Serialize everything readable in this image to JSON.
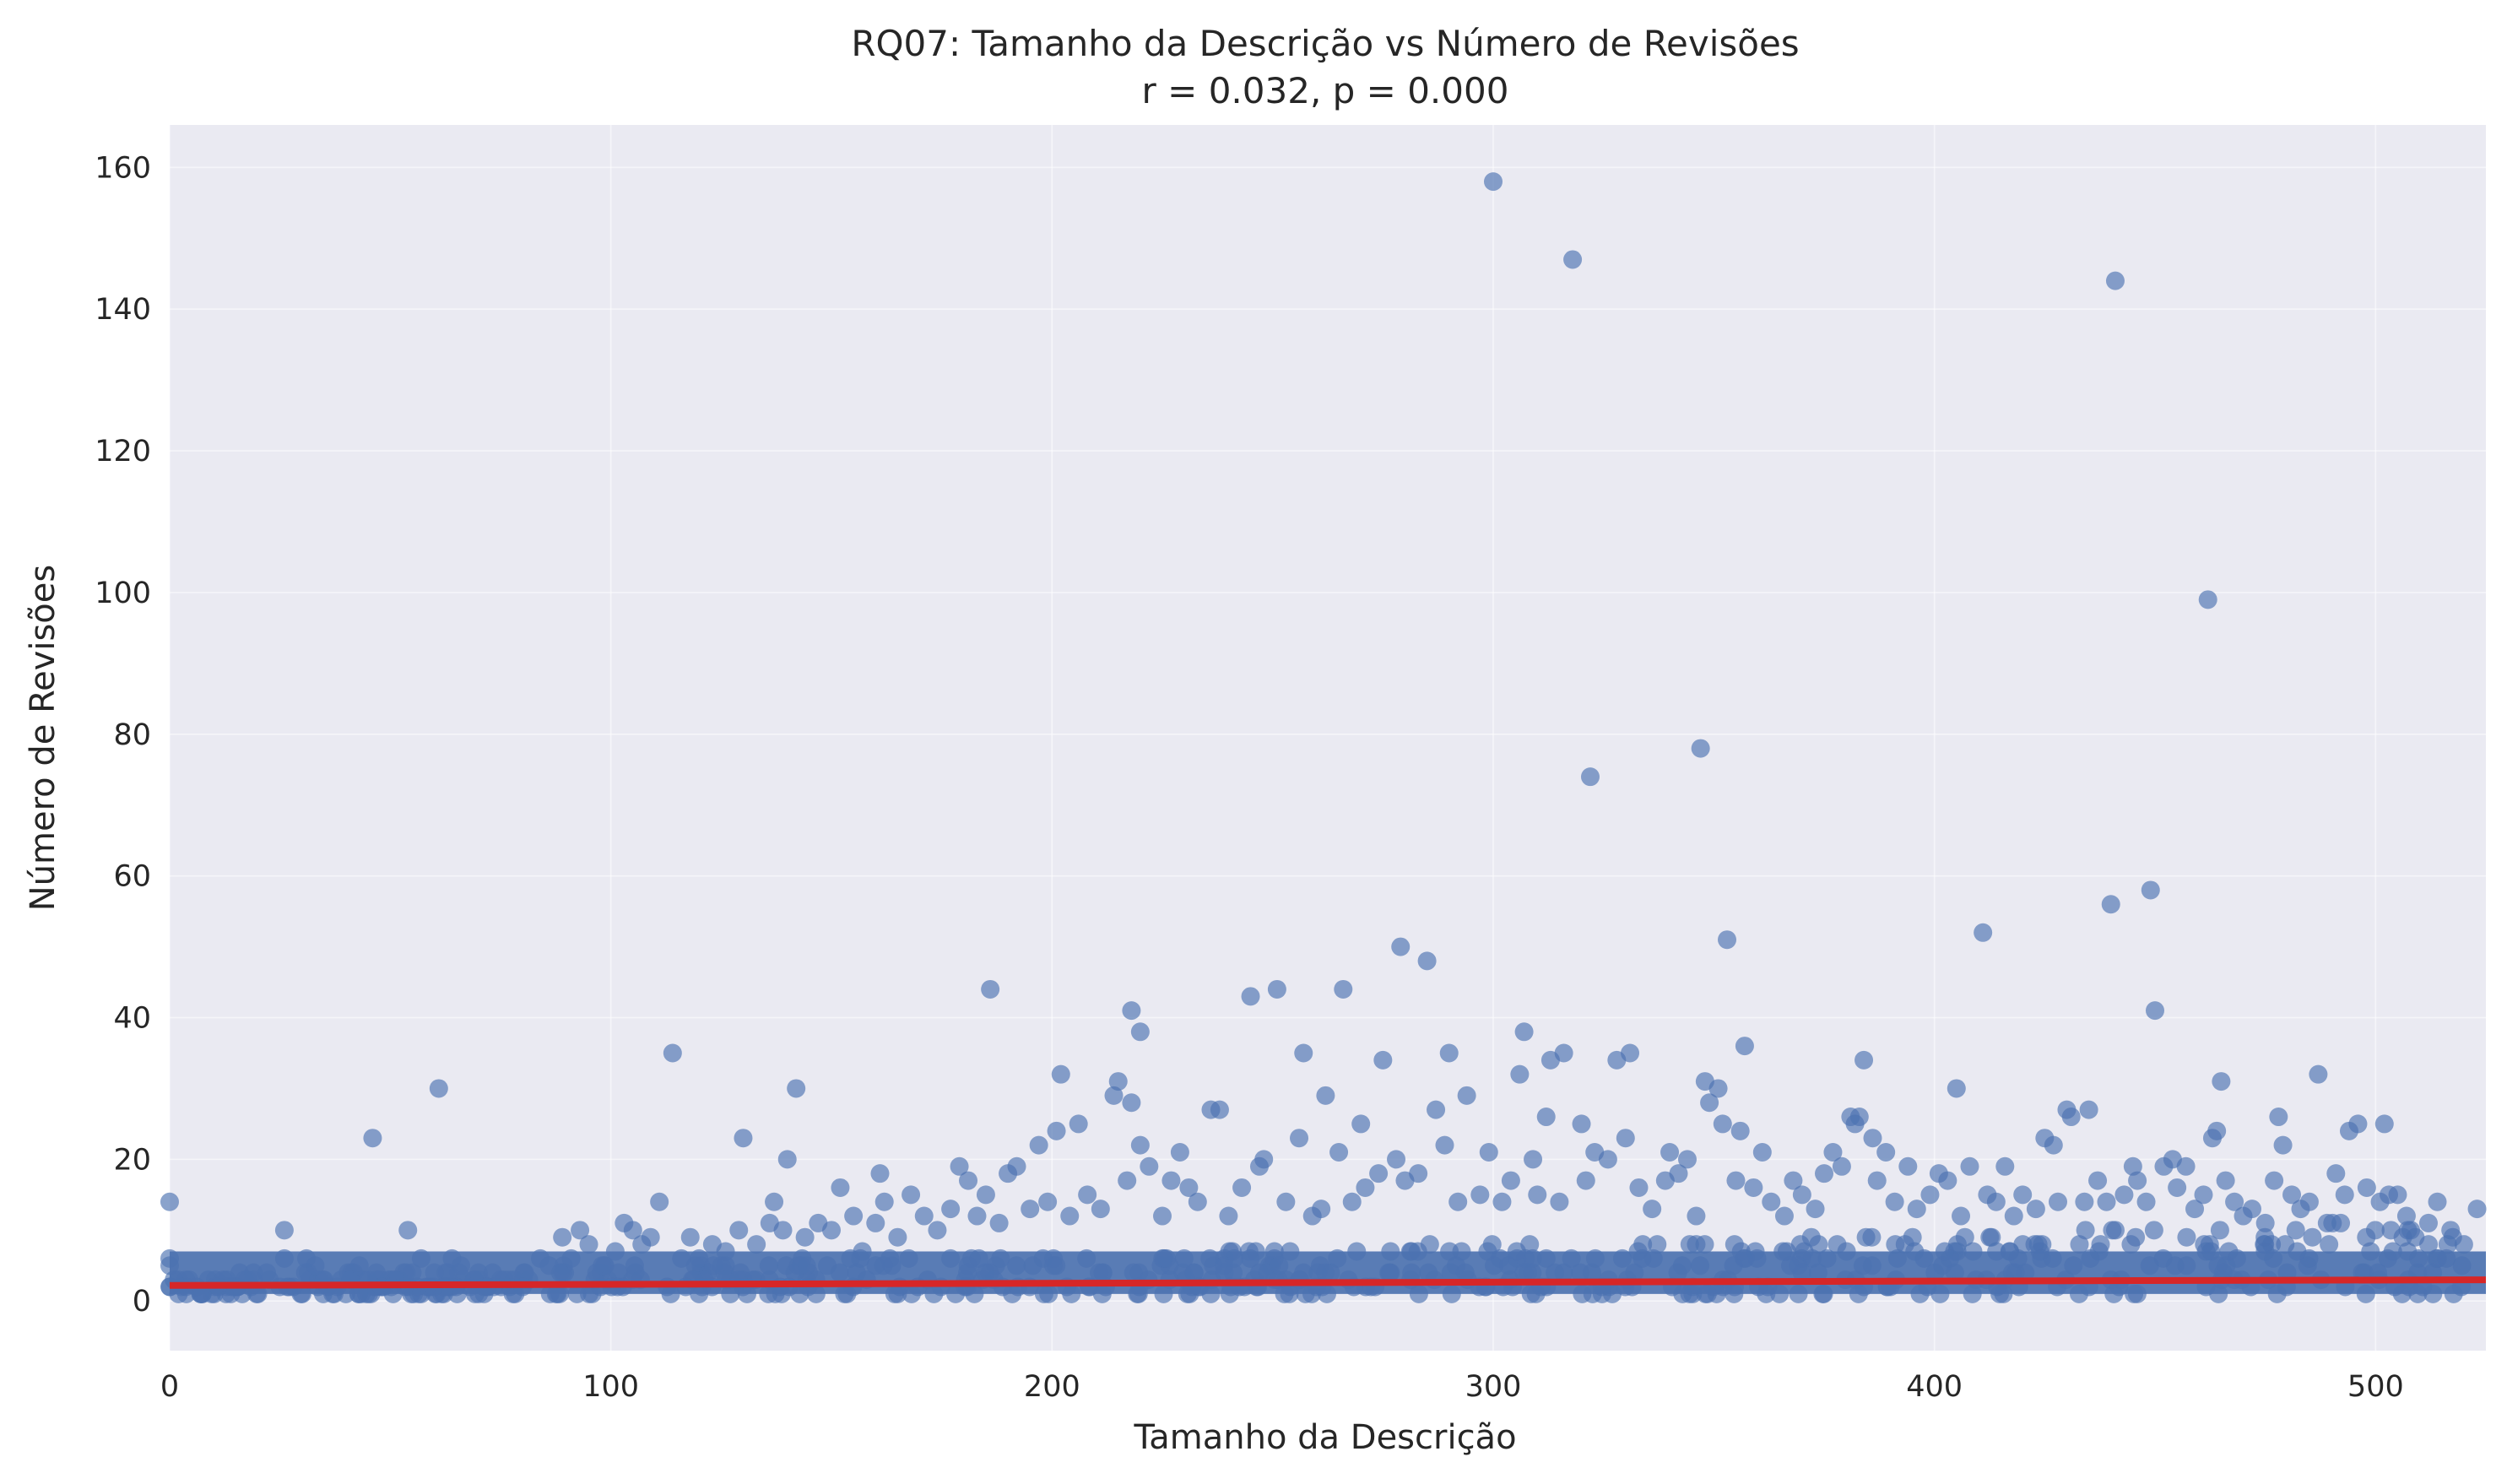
{
  "chart_data": {
    "type": "scatter",
    "title": "RQ07: Tamanho da Descrição vs Número de Revisões",
    "subtitle": "r = 0.032, p = 0.000",
    "xlabel": "Tamanho da Descrição",
    "ylabel": "Número de Revisões",
    "xlim": [
      0,
      525
    ],
    "ylim": [
      -7,
      166
    ],
    "xticks": [
      "0",
      "100",
      "200",
      "300",
      "400",
      "500"
    ],
    "yticks": [
      "0",
      "20",
      "40",
      "60",
      "80",
      "100",
      "120",
      "140",
      "160"
    ],
    "grid": true,
    "background_color": "#EAEAF2",
    "point_color": "#4C72B0",
    "trend_color": "#D62728",
    "trend_line": {
      "x": [
        0,
        525
      ],
      "y": [
        2.2,
        3.0
      ]
    },
    "dense_band": {
      "x_range": [
        0,
        525
      ],
      "y_range": [
        1,
        7
      ]
    },
    "points": [
      [
        0,
        14
      ],
      [
        0,
        6
      ],
      [
        0,
        5
      ],
      [
        2,
        1
      ],
      [
        7,
        1
      ],
      [
        11,
        2
      ],
      [
        13,
        3
      ],
      [
        17,
        3
      ],
      [
        19,
        4
      ],
      [
        20,
        1
      ],
      [
        22,
        4
      ],
      [
        26,
        10
      ],
      [
        26,
        6
      ],
      [
        28,
        2
      ],
      [
        31,
        6
      ],
      [
        33,
        5
      ],
      [
        35,
        3
      ],
      [
        38,
        2
      ],
      [
        41,
        3
      ],
      [
        43,
        5
      ],
      [
        45,
        3
      ],
      [
        46,
        23
      ],
      [
        48,
        2
      ],
      [
        51,
        3
      ],
      [
        54,
        10
      ],
      [
        55,
        4
      ],
      [
        57,
        6
      ],
      [
        60,
        4
      ],
      [
        61,
        30
      ],
      [
        64,
        6
      ],
      [
        66,
        5
      ],
      [
        69,
        3
      ],
      [
        72,
        2
      ],
      [
        75,
        3
      ],
      [
        78,
        3
      ],
      [
        80,
        2
      ],
      [
        84,
        6
      ],
      [
        86,
        5
      ],
      [
        89,
        9
      ],
      [
        91,
        6
      ],
      [
        93,
        10
      ],
      [
        95,
        8
      ],
      [
        98,
        5
      ],
      [
        101,
        7
      ],
      [
        103,
        11
      ],
      [
        105,
        10
      ],
      [
        107,
        8
      ],
      [
        109,
        9
      ],
      [
        111,
        14
      ],
      [
        114,
        35
      ],
      [
        116,
        6
      ],
      [
        118,
        9
      ],
      [
        120,
        6
      ],
      [
        123,
        8
      ],
      [
        126,
        7
      ],
      [
        129,
        10
      ],
      [
        130,
        23
      ],
      [
        133,
        8
      ],
      [
        136,
        11
      ],
      [
        137,
        14
      ],
      [
        139,
        10
      ],
      [
        140,
        20
      ],
      [
        142,
        30
      ],
      [
        144,
        9
      ],
      [
        147,
        11
      ],
      [
        150,
        10
      ],
      [
        152,
        16
      ],
      [
        155,
        12
      ],
      [
        157,
        7
      ],
      [
        160,
        11
      ],
      [
        161,
        18
      ],
      [
        162,
        14
      ],
      [
        165,
        9
      ],
      [
        168,
        15
      ],
      [
        171,
        12
      ],
      [
        174,
        10
      ],
      [
        177,
        13
      ],
      [
        179,
        19
      ],
      [
        181,
        17
      ],
      [
        183,
        12
      ],
      [
        185,
        15
      ],
      [
        186,
        44
      ],
      [
        188,
        11
      ],
      [
        190,
        18
      ],
      [
        192,
        19
      ],
      [
        195,
        13
      ],
      [
        197,
        22
      ],
      [
        199,
        14
      ],
      [
        201,
        24
      ],
      [
        202,
        32
      ],
      [
        204,
        12
      ],
      [
        206,
        25
      ],
      [
        208,
        15
      ],
      [
        211,
        13
      ],
      [
        214,
        29
      ],
      [
        215,
        31
      ],
      [
        217,
        17
      ],
      [
        218,
        28
      ],
      [
        218,
        41
      ],
      [
        220,
        38
      ],
      [
        220,
        22
      ],
      [
        222,
        19
      ],
      [
        225,
        12
      ],
      [
        227,
        17
      ],
      [
        229,
        21
      ],
      [
        231,
        16
      ],
      [
        233,
        14
      ],
      [
        236,
        27
      ],
      [
        238,
        27
      ],
      [
        240,
        12
      ],
      [
        243,
        16
      ],
      [
        245,
        43
      ],
      [
        247,
        19
      ],
      [
        248,
        20
      ],
      [
        251,
        44
      ],
      [
        253,
        14
      ],
      [
        256,
        23
      ],
      [
        257,
        35
      ],
      [
        259,
        12
      ],
      [
        261,
        13
      ],
      [
        262,
        29
      ],
      [
        265,
        21
      ],
      [
        266,
        44
      ],
      [
        268,
        14
      ],
      [
        270,
        25
      ],
      [
        271,
        16
      ],
      [
        274,
        18
      ],
      [
        275,
        34
      ],
      [
        278,
        20
      ],
      [
        279,
        50
      ],
      [
        280,
        17
      ],
      [
        283,
        18
      ],
      [
        285,
        48
      ],
      [
        287,
        27
      ],
      [
        289,
        22
      ],
      [
        290,
        35
      ],
      [
        292,
        14
      ],
      [
        294,
        29
      ],
      [
        297,
        15
      ],
      [
        299,
        21
      ],
      [
        300,
        158
      ],
      [
        302,
        14
      ],
      [
        304,
        17
      ],
      [
        306,
        32
      ],
      [
        307,
        38
      ],
      [
        309,
        20
      ],
      [
        310,
        15
      ],
      [
        312,
        26
      ],
      [
        313,
        34
      ],
      [
        315,
        14
      ],
      [
        316,
        35
      ],
      [
        318,
        147
      ],
      [
        320,
        25
      ],
      [
        321,
        17
      ],
      [
        322,
        74
      ],
      [
        323,
        21
      ],
      [
        326,
        20
      ],
      [
        328,
        34
      ],
      [
        330,
        23
      ],
      [
        331,
        35
      ],
      [
        333,
        16
      ],
      [
        336,
        13
      ],
      [
        339,
        17
      ],
      [
        340,
        21
      ],
      [
        342,
        18
      ],
      [
        344,
        20
      ],
      [
        346,
        12
      ],
      [
        347,
        78
      ],
      [
        348,
        31
      ],
      [
        349,
        28
      ],
      [
        351,
        30
      ],
      [
        352,
        25
      ],
      [
        353,
        51
      ],
      [
        355,
        17
      ],
      [
        356,
        24
      ],
      [
        357,
        36
      ],
      [
        359,
        16
      ],
      [
        361,
        21
      ],
      [
        363,
        14
      ],
      [
        366,
        12
      ],
      [
        368,
        17
      ],
      [
        370,
        15
      ],
      [
        373,
        13
      ],
      [
        375,
        18
      ],
      [
        377,
        21
      ],
      [
        379,
        19
      ],
      [
        381,
        26
      ],
      [
        382,
        25
      ],
      [
        383,
        26
      ],
      [
        384,
        34
      ],
      [
        386,
        23
      ],
      [
        387,
        17
      ],
      [
        389,
        21
      ],
      [
        391,
        14
      ],
      [
        394,
        19
      ],
      [
        396,
        13
      ],
      [
        399,
        15
      ],
      [
        401,
        18
      ],
      [
        403,
        17
      ],
      [
        405,
        30
      ],
      [
        406,
        12
      ],
      [
        408,
        19
      ],
      [
        411,
        52
      ],
      [
        412,
        15
      ],
      [
        414,
        14
      ],
      [
        416,
        19
      ],
      [
        418,
        12
      ],
      [
        420,
        15
      ],
      [
        423,
        13
      ],
      [
        425,
        23
      ],
      [
        427,
        22
      ],
      [
        428,
        14
      ],
      [
        430,
        27
      ],
      [
        431,
        26
      ],
      [
        434,
        14
      ],
      [
        435,
        27
      ],
      [
        437,
        17
      ],
      [
        439,
        14
      ],
      [
        440,
        56
      ],
      [
        441,
        144
      ],
      [
        443,
        15
      ],
      [
        445,
        19
      ],
      [
        446,
        17
      ],
      [
        448,
        14
      ],
      [
        449,
        58
      ],
      [
        450,
        41
      ],
      [
        452,
        19
      ],
      [
        454,
        20
      ],
      [
        455,
        16
      ],
      [
        457,
        19
      ],
      [
        459,
        13
      ],
      [
        461,
        15
      ],
      [
        462,
        99
      ],
      [
        463,
        23
      ],
      [
        464,
        24
      ],
      [
        465,
        31
      ],
      [
        466,
        17
      ],
      [
        468,
        14
      ],
      [
        470,
        12
      ],
      [
        472,
        13
      ],
      [
        475,
        11
      ],
      [
        477,
        17
      ],
      [
        478,
        26
      ],
      [
        479,
        22
      ],
      [
        481,
        15
      ],
      [
        483,
        13
      ],
      [
        485,
        14
      ],
      [
        487,
        32
      ],
      [
        489,
        11
      ],
      [
        491,
        18
      ],
      [
        493,
        15
      ],
      [
        494,
        24
      ],
      [
        496,
        25
      ],
      [
        498,
        16
      ],
      [
        501,
        14
      ],
      [
        502,
        25
      ],
      [
        503,
        15
      ],
      [
        505,
        15
      ],
      [
        507,
        12
      ],
      [
        509,
        9
      ],
      [
        512,
        8
      ],
      [
        514,
        14
      ],
      [
        517,
        10
      ],
      [
        520,
        8
      ],
      [
        523,
        13
      ]
    ]
  }
}
